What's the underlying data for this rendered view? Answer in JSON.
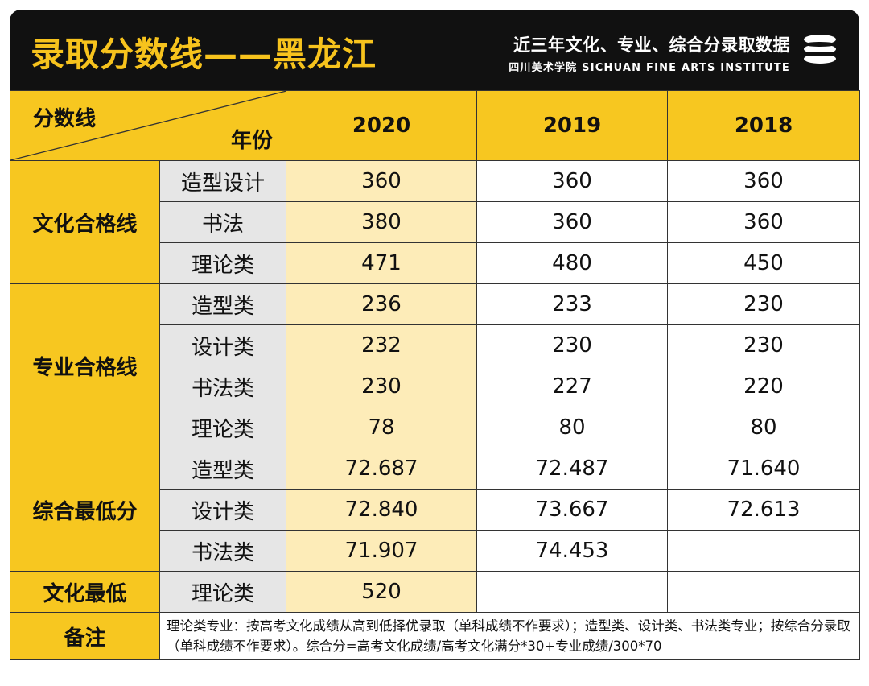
{
  "banner": {
    "title": "录取分数线——黑龙江",
    "subtitle": "近三年文化、专业、综合分录取数据",
    "institute": "四川美术学院 SICHUAN FINE ARTS INSTITUTE",
    "logo_icon": "stacked-discs-logo"
  },
  "colors": {
    "accent_yellow": "#f7c720",
    "highlight_cream": "#fdecb8",
    "banner_black": "#111111",
    "subcat_gray": "#e6e6e6"
  },
  "table": {
    "corner_top": "分数线",
    "corner_bottom": "年份",
    "years": [
      "2020",
      "2019",
      "2018"
    ],
    "groups": [
      {
        "name": "文化合格线",
        "rows": [
          {
            "category": "造型设计",
            "values": [
              "360",
              "360",
              "360"
            ]
          },
          {
            "category": "书法",
            "values": [
              "380",
              "360",
              "360"
            ]
          },
          {
            "category": "理论类",
            "values": [
              "471",
              "480",
              "450"
            ]
          }
        ]
      },
      {
        "name": "专业合格线",
        "rows": [
          {
            "category": "造型类",
            "values": [
              "236",
              "233",
              "230"
            ]
          },
          {
            "category": "设计类",
            "values": [
              "232",
              "230",
              "230"
            ]
          },
          {
            "category": "书法类",
            "values": [
              "230",
              "227",
              "220"
            ]
          },
          {
            "category": "理论类",
            "values": [
              "78",
              "80",
              "80"
            ]
          }
        ]
      },
      {
        "name": "综合最低分",
        "rows": [
          {
            "category": "造型类",
            "values": [
              "72.687",
              "72.487",
              "71.640"
            ]
          },
          {
            "category": "设计类",
            "values": [
              "72.840",
              "73.667",
              "72.613"
            ]
          },
          {
            "category": "书法类",
            "values": [
              "71.907",
              "74.453",
              ""
            ]
          }
        ]
      },
      {
        "name": "文化最低",
        "rows": [
          {
            "category": "理论类",
            "values": [
              "520",
              "",
              ""
            ]
          }
        ]
      }
    ],
    "note_label": "备注",
    "note_text": "理论类专业：按高考文化成绩从高到低择优录取（单科成绩不作要求）；造型类、设计类、书法类专业；按综合分录取（单科成绩不作要求）。综合分=高考文化成绩/高考文化满分*30+专业成绩/300*70"
  }
}
